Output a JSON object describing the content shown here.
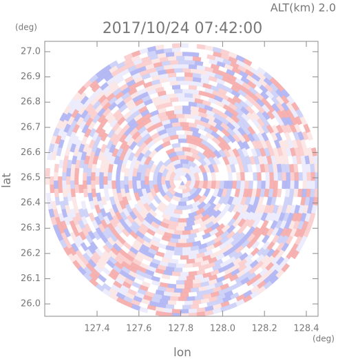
{
  "chart_data": {
    "type": "radar",
    "title": "2017/10/24 07:42:00",
    "subtitle": "ALT(km) 2.0",
    "x_label": "lon",
    "y_label": "lat",
    "x_unit": "(deg)",
    "y_unit": "(deg)",
    "xlim": [
      127.15,
      128.456
    ],
    "ylim": [
      25.951,
      27.041
    ],
    "xticks": [
      127.4,
      127.6,
      127.8,
      {
        "value": 128,
        "label": "128.0"
      },
      128.2,
      128.4
    ],
    "yticks": [
      {
        "value": 26,
        "label": "26.0"
      },
      26.1,
      26.2,
      26.3,
      26.4,
      26.5,
      26.6,
      26.7,
      26.8,
      26.9,
      {
        "value": 27,
        "label": "27.0"
      }
    ]
  }
}
